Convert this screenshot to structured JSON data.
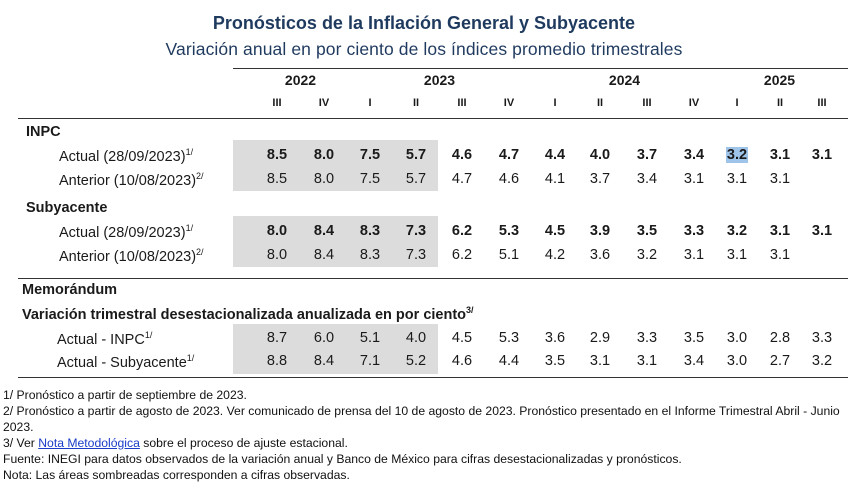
{
  "title": "Pronósticos de la Inflación General y Subyacente",
  "subtitle": "Variación anual en por ciento de los índices promedio trimestrales",
  "years": [
    "2022",
    "2023",
    "2024",
    "2025"
  ],
  "quarters": [
    "III",
    "IV",
    "I",
    "II",
    "III",
    "IV",
    "I",
    "II",
    "III",
    "IV",
    "I",
    "II",
    "III"
  ],
  "sections": {
    "inpc": "INPC",
    "subyacente": "Subyacente",
    "memorandum": "Memorándum",
    "desest": "Variación trimestral desestacionalizada anualizada en por ciento",
    "desest_sup": "3/"
  },
  "rows": [
    {
      "label": "Actual (28/09/2023)",
      "sup": "1/",
      "bold": true,
      "values": [
        "8.5",
        "8.0",
        "7.5",
        "5.7",
        "4.6",
        "4.7",
        "4.4",
        "4.0",
        "3.7",
        "3.4",
        "3.2",
        "3.1",
        "3.1"
      ]
    },
    {
      "label": "Anterior (10/08/2023)",
      "sup": "2/",
      "bold": false,
      "values": [
        "8.5",
        "8.0",
        "7.5",
        "5.7",
        "4.7",
        "4.6",
        "4.1",
        "3.7",
        "3.4",
        "3.1",
        "3.1",
        "3.1",
        ""
      ]
    },
    {
      "label": "Actual (28/09/2023)",
      "sup": "1/",
      "bold": true,
      "values": [
        "8.0",
        "8.4",
        "8.3",
        "7.3",
        "6.2",
        "5.3",
        "4.5",
        "3.9",
        "3.5",
        "3.3",
        "3.2",
        "3.1",
        "3.1"
      ]
    },
    {
      "label": "Anterior (10/08/2023)",
      "sup": "2/",
      "bold": false,
      "values": [
        "8.0",
        "8.4",
        "8.3",
        "7.3",
        "6.2",
        "5.1",
        "4.2",
        "3.6",
        "3.2",
        "3.1",
        "3.1",
        "3.1",
        ""
      ]
    },
    {
      "label": "Actual - INPC",
      "sup": "1/",
      "bold": false,
      "values": [
        "8.7",
        "6.0",
        "5.1",
        "4.0",
        "4.5",
        "5.3",
        "3.6",
        "2.9",
        "3.3",
        "3.5",
        "3.0",
        "2.8",
        "3.3"
      ]
    },
    {
      "label": "Actual - Subyacente",
      "sup": "1/",
      "bold": false,
      "values": [
        "8.8",
        "8.4",
        "7.1",
        "5.2",
        "4.6",
        "4.4",
        "3.5",
        "3.1",
        "3.1",
        "3.4",
        "3.0",
        "2.7",
        "3.2"
      ]
    }
  ],
  "notes": {
    "n1": "1/ Pronóstico a partir de septiembre de 2023.",
    "n2": "2/ Pronóstico a partir de agosto de 2023. Ver comunicado de prensa del 10 de agosto de 2023. Pronóstico presentado en el Informe Trimestral Abril - Junio 2023.",
    "n3_pre": "3/ Ver ",
    "n3_link": "Nota Metodológica",
    "n3_post": " sobre el proceso de ajuste estacional.",
    "fuente": "Fuente: INEGI para datos observados de la variación anual y Banco de México para cifras desestacionalizadas y pronósticos.",
    "nota": "Nota: Las áreas sombreadas corresponden a cifras observadas."
  },
  "colors": {
    "title": "#1f3a5f",
    "shade": "#dcdcdc",
    "highlight": "#9fc4ea",
    "link": "#1a3cc8"
  }
}
